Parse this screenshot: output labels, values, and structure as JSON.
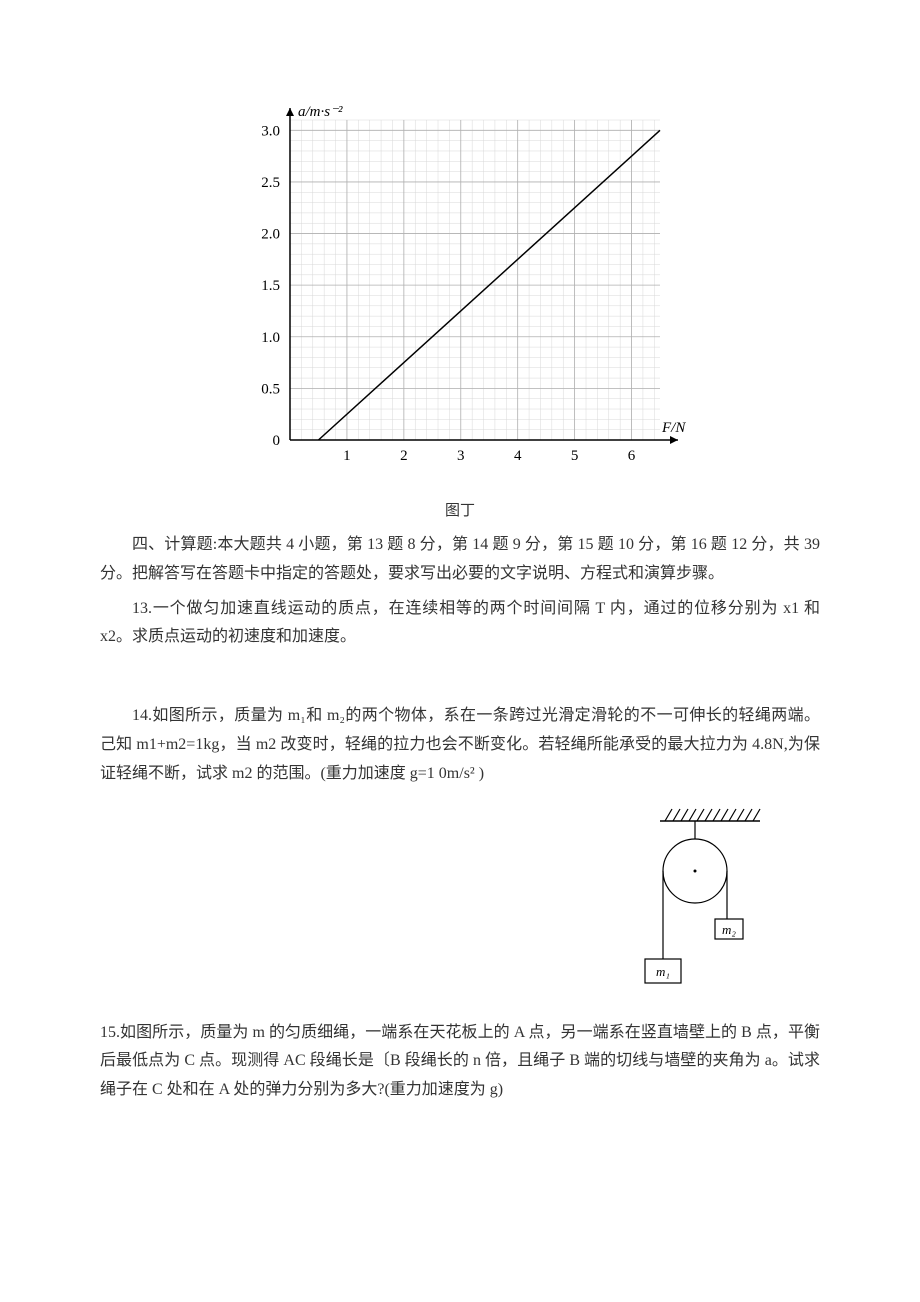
{
  "chart": {
    "type": "line",
    "y_axis_label": "a/m·s⁻²",
    "x_axis_label": "F/N",
    "x_ticks": [
      "1",
      "2",
      "3",
      "4",
      "5",
      "6"
    ],
    "y_ticks": [
      "0",
      "0.5",
      "1.0",
      "1.5",
      "2.0",
      "2.5",
      "3.0"
    ],
    "xlim": [
      0,
      6.5
    ],
    "ylim": [
      0,
      3.1
    ],
    "line_start": {
      "x": 0.5,
      "y": 0
    },
    "line_end": {
      "x": 6.5,
      "y": 3.0
    },
    "grid_minor_divisions": 5,
    "grid_major_color": "#b0b0b0",
    "grid_minor_color": "#d8d8d8",
    "axis_color": "#000000",
    "line_color": "#000000",
    "background_color": "#ffffff",
    "caption": "图丁",
    "tick_fontsize": 15,
    "label_fontsize": 15
  },
  "section_heading": "四、计算题:本大题共 4 小题，第 13 题 8 分，第 14 题 9 分，第 15 题 10 分，第 16 题 12 分，共 39 分。把解答写在答题卡中指定的答题处，要求写出必要的文字说明、方程式和演算步骤。",
  "q13": "13.一个做匀加速直线运动的质点，在连续相等的两个时间间隔 T 内，通过的位移分别为 x1 和 x2。求质点运动的初速度和加速度。",
  "q14": "14.如图所示，质量为 m₁和 m₂的两个物体，系在一条跨过光滑定滑轮的不一可伸长的轻绳两端。己知 m1+m2=1kg，当 m2 改变时，轻绳的拉力也会不断变化。若轻绳所能承受的最大拉力为 4.8N,为保证轻绳不断，试求 m2 的范围。(重力加速度 g=1 0m/s² )",
  "q14_fig": {
    "hatch_color": "#000000",
    "outline_color": "#000000",
    "m1_label": "m₁",
    "m2_label": "m₂",
    "label_fontsize": 13
  },
  "q15": "15.如图所示，质量为 m 的匀质细绳，一端系在天花板上的 A 点，另一端系在竖直墙壁上的 B 点，平衡后最低点为 C 点。现测得 AC 段绳长是〔B 段绳长的 n 倍，且绳子 B 端的切线与墙壁的夹角为 a。试求绳子在 C 处和在 A 处的弹力分别为多大?(重力加速度为 g)"
}
